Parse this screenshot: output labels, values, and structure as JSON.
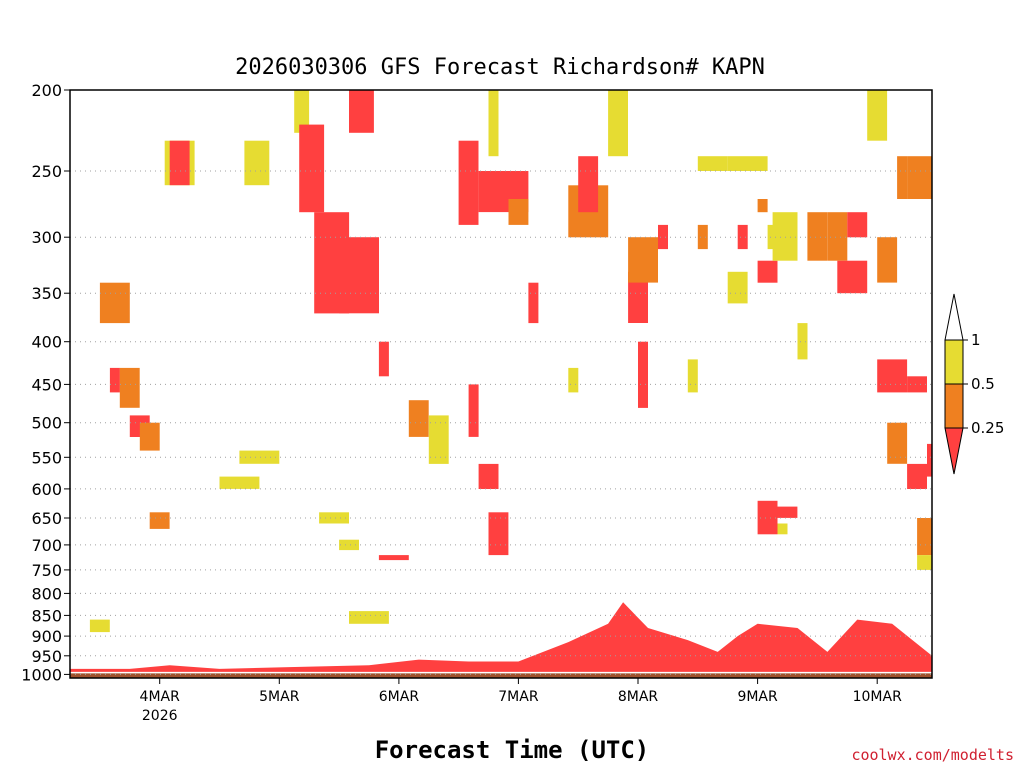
{
  "chart_data": {
    "type": "heatmap",
    "title": "2026030306 GFS Forecast Richardson# KAPN",
    "xlabel": "Forecast Time (UTC)",
    "ylabel": "",
    "credit": "coolwx.com/modelts",
    "xlim_hours": [
      0,
      173
    ],
    "x_ticks": [
      {
        "label": "4MAR",
        "sublabel": "2026",
        "hour": 18
      },
      {
        "label": "5MAR",
        "sublabel": "",
        "hour": 42
      },
      {
        "label": "6MAR",
        "sublabel": "",
        "hour": 66
      },
      {
        "label": "7MAR",
        "sublabel": "",
        "hour": 90
      },
      {
        "label": "8MAR",
        "sublabel": "",
        "hour": 114
      },
      {
        "label": "9MAR",
        "sublabel": "",
        "hour": 138
      },
      {
        "label": "10MAR",
        "sublabel": "",
        "hour": 162
      }
    ],
    "y_ticks_hpa": [
      200,
      250,
      300,
      350,
      400,
      450,
      500,
      550,
      600,
      650,
      700,
      750,
      800,
      850,
      900,
      950,
      1000
    ],
    "ylim_hpa": [
      200,
      1010
    ],
    "surface_pressure_hpa": 995,
    "colors": {
      "lt_025": "#ff4040",
      "025_05": "#ef8020",
      "05_1": "#e6dc32",
      "ground": "#a0522d",
      "grid": "#a0a0a0"
    },
    "legend": {
      "labels": [
        "1",
        "0.5",
        "0.25"
      ],
      "bins": [
        {
          "range": "> 1",
          "color": "#ffffff"
        },
        {
          "range": "0.5-1",
          "color": "#e6dc32"
        },
        {
          "range": "0.25-0.5",
          "color": "#ef8020"
        },
        {
          "range": "< 0.25",
          "color": "#ff4040"
        }
      ]
    },
    "boundary_layer_red_top_hpa": [
      {
        "hour": 0,
        "p": 985
      },
      {
        "hour": 12,
        "p": 985
      },
      {
        "hour": 20,
        "p": 975
      },
      {
        "hour": 30,
        "p": 985
      },
      {
        "hour": 44,
        "p": 980
      },
      {
        "hour": 60,
        "p": 975
      },
      {
        "hour": 70,
        "p": 960
      },
      {
        "hour": 80,
        "p": 965
      },
      {
        "hour": 90,
        "p": 965
      },
      {
        "hour": 100,
        "p": 915
      },
      {
        "hour": 108,
        "p": 870
      },
      {
        "hour": 111,
        "p": 820
      },
      {
        "hour": 116,
        "p": 880
      },
      {
        "hour": 124,
        "p": 910
      },
      {
        "hour": 130,
        "p": 940
      },
      {
        "hour": 134,
        "p": 900
      },
      {
        "hour": 138,
        "p": 870
      },
      {
        "hour": 146,
        "p": 880
      },
      {
        "hour": 152,
        "p": 940
      },
      {
        "hour": 158,
        "p": 860
      },
      {
        "hour": 165,
        "p": 870
      },
      {
        "hour": 173,
        "p": 950
      }
    ],
    "blocks": [
      {
        "h0": 19,
        "h1": 25,
        "p0": 230,
        "p1": 260,
        "v": "05_1"
      },
      {
        "h0": 20,
        "h1": 24,
        "p0": 230,
        "p1": 260,
        "v": "lt_025"
      },
      {
        "h0": 35,
        "h1": 40,
        "p0": 230,
        "p1": 260,
        "v": "05_1"
      },
      {
        "h0": 45,
        "h1": 48,
        "p0": 200,
        "p1": 225,
        "v": "05_1"
      },
      {
        "h0": 46,
        "h1": 51,
        "p0": 220,
        "p1": 280,
        "v": "lt_025"
      },
      {
        "h0": 49,
        "h1": 56,
        "p0": 280,
        "p1": 370,
        "v": "lt_025"
      },
      {
        "h0": 54,
        "h1": 62,
        "p0": 300,
        "p1": 370,
        "v": "lt_025"
      },
      {
        "h0": 56,
        "h1": 61,
        "p0": 200,
        "p1": 225,
        "v": "lt_025"
      },
      {
        "h0": 62,
        "h1": 64,
        "p0": 400,
        "p1": 440,
        "v": "lt_025"
      },
      {
        "h0": 78,
        "h1": 82,
        "p0": 230,
        "p1": 290,
        "v": "lt_025"
      },
      {
        "h0": 82,
        "h1": 92,
        "p0": 250,
        "p1": 280,
        "v": "lt_025"
      },
      {
        "h0": 84,
        "h1": 86,
        "p0": 200,
        "p1": 240,
        "v": "05_1"
      },
      {
        "h0": 88,
        "h1": 92,
        "p0": 270,
        "p1": 290,
        "v": "025_05"
      },
      {
        "h0": 100,
        "h1": 108,
        "p0": 260,
        "p1": 300,
        "v": "025_05"
      },
      {
        "h0": 102,
        "h1": 106,
        "p0": 240,
        "p1": 280,
        "v": "lt_025"
      },
      {
        "h0": 108,
        "h1": 112,
        "p0": 200,
        "p1": 240,
        "v": "05_1"
      },
      {
        "h0": 112,
        "h1": 116,
        "p0": 330,
        "p1": 380,
        "v": "lt_025"
      },
      {
        "h0": 114,
        "h1": 116,
        "p0": 400,
        "p1": 480,
        "v": "lt_025"
      },
      {
        "h0": 126,
        "h1": 132,
        "p0": 240,
        "p1": 250,
        "v": "05_1"
      },
      {
        "h0": 126,
        "h1": 128,
        "p0": 290,
        "p1": 310,
        "v": "025_05"
      },
      {
        "h0": 132,
        "h1": 140,
        "p0": 240,
        "p1": 250,
        "v": "05_1"
      },
      {
        "h0": 132,
        "h1": 136,
        "p0": 330,
        "p1": 360,
        "v": "05_1"
      },
      {
        "h0": 134,
        "h1": 136,
        "p0": 290,
        "p1": 310,
        "v": "lt_025"
      },
      {
        "h0": 138,
        "h1": 140,
        "p0": 270,
        "p1": 280,
        "v": "025_05"
      },
      {
        "h0": 138,
        "h1": 142,
        "p0": 320,
        "p1": 340,
        "v": "lt_025"
      },
      {
        "h0": 140,
        "h1": 144,
        "p0": 290,
        "p1": 310,
        "v": "05_1"
      },
      {
        "h0": 141,
        "h1": 146,
        "p0": 280,
        "p1": 320,
        "v": "05_1"
      },
      {
        "h0": 138,
        "h1": 142,
        "p0": 620,
        "p1": 680,
        "v": "lt_025"
      },
      {
        "h0": 142,
        "h1": 146,
        "p0": 630,
        "p1": 650,
        "v": "lt_025"
      },
      {
        "h0": 142,
        "h1": 144,
        "p0": 660,
        "p1": 680,
        "v": "05_1"
      },
      {
        "h0": 146,
        "h1": 148,
        "p0": 380,
        "p1": 420,
        "v": "05_1"
      },
      {
        "h0": 148,
        "h1": 152,
        "p0": 280,
        "p1": 320,
        "v": "025_05"
      },
      {
        "h0": 152,
        "h1": 156,
        "p0": 280,
        "p1": 320,
        "v": "025_05"
      },
      {
        "h0": 154,
        "h1": 160,
        "p0": 320,
        "p1": 350,
        "v": "lt_025"
      },
      {
        "h0": 156,
        "h1": 160,
        "p0": 280,
        "p1": 300,
        "v": "lt_025"
      },
      {
        "h0": 160,
        "h1": 164,
        "p0": 200,
        "p1": 230,
        "v": "05_1"
      },
      {
        "h0": 162,
        "h1": 166,
        "p0": 300,
        "p1": 340,
        "v": "025_05"
      },
      {
        "h0": 162,
        "h1": 168,
        "p0": 420,
        "p1": 460,
        "v": "lt_025"
      },
      {
        "h0": 164,
        "h1": 168,
        "p0": 500,
        "p1": 560,
        "v": "025_05"
      },
      {
        "h0": 166,
        "h1": 168,
        "p0": 240,
        "p1": 270,
        "v": "025_05"
      },
      {
        "h0": 168,
        "h1": 173,
        "p0": 240,
        "p1": 270,
        "v": "025_05"
      },
      {
        "h0": 168,
        "h1": 172,
        "p0": 440,
        "p1": 460,
        "v": "lt_025"
      },
      {
        "h0": 168,
        "h1": 172,
        "p0": 560,
        "p1": 600,
        "v": "lt_025"
      },
      {
        "h0": 170,
        "h1": 173,
        "p0": 650,
        "p1": 720,
        "v": "025_05"
      },
      {
        "h0": 172,
        "h1": 173,
        "p0": 530,
        "p1": 580,
        "v": "lt_025"
      },
      {
        "h0": 170,
        "h1": 173,
        "p0": 720,
        "p1": 750,
        "v": "05_1"
      },
      {
        "h0": 6,
        "h1": 12,
        "p0": 340,
        "p1": 380,
        "v": "025_05"
      },
      {
        "h0": 8,
        "h1": 10,
        "p0": 430,
        "p1": 460,
        "v": "lt_025"
      },
      {
        "h0": 10,
        "h1": 14,
        "p0": 430,
        "p1": 480,
        "v": "025_05"
      },
      {
        "h0": 12,
        "h1": 16,
        "p0": 490,
        "p1": 520,
        "v": "lt_025"
      },
      {
        "h0": 14,
        "h1": 18,
        "p0": 500,
        "p1": 540,
        "v": "025_05"
      },
      {
        "h0": 16,
        "h1": 20,
        "p0": 640,
        "p1": 670,
        "v": "025_05"
      },
      {
        "h0": 34,
        "h1": 42,
        "p0": 540,
        "p1": 560,
        "v": "05_1"
      },
      {
        "h0": 30,
        "h1": 38,
        "p0": 580,
        "p1": 600,
        "v": "05_1"
      },
      {
        "h0": 50,
        "h1": 56,
        "p0": 640,
        "p1": 660,
        "v": "05_1"
      },
      {
        "h0": 54,
        "h1": 58,
        "p0": 690,
        "p1": 710,
        "v": "05_1"
      },
      {
        "h0": 56,
        "h1": 64,
        "p0": 840,
        "p1": 870,
        "v": "05_1"
      },
      {
        "h0": 62,
        "h1": 68,
        "p0": 720,
        "p1": 730,
        "v": "lt_025"
      },
      {
        "h0": 68,
        "h1": 72,
        "p0": 470,
        "p1": 520,
        "v": "025_05"
      },
      {
        "h0": 72,
        "h1": 76,
        "p0": 490,
        "p1": 560,
        "v": "05_1"
      },
      {
        "h0": 80,
        "h1": 82,
        "p0": 450,
        "p1": 520,
        "v": "lt_025"
      },
      {
        "h0": 82,
        "h1": 86,
        "p0": 560,
        "p1": 600,
        "v": "lt_025"
      },
      {
        "h0": 84,
        "h1": 88,
        "p0": 640,
        "p1": 720,
        "v": "lt_025"
      },
      {
        "h0": 4,
        "h1": 8,
        "p0": 860,
        "p1": 890,
        "v": "05_1"
      },
      {
        "h0": 100,
        "h1": 102,
        "p0": 430,
        "p1": 460,
        "v": "05_1"
      },
      {
        "h0": 92,
        "h1": 94,
        "p0": 340,
        "p1": 380,
        "v": "lt_025"
      },
      {
        "h0": 112,
        "h1": 118,
        "p0": 300,
        "p1": 340,
        "v": "025_05"
      },
      {
        "h0": 118,
        "h1": 120,
        "p0": 290,
        "p1": 310,
        "v": "lt_025"
      },
      {
        "h0": 124,
        "h1": 126,
        "p0": 420,
        "p1": 460,
        "v": "05_1"
      }
    ]
  }
}
